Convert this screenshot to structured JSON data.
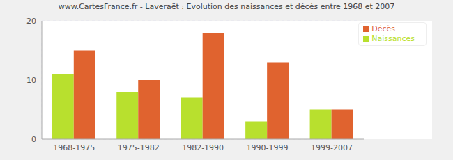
{
  "chart_data": {
    "type": "bar",
    "title": "www.CartesFrance.fr - Laveraët : Evolution des naissances et décès entre 1968 et 2007",
    "categories": [
      "1968-1975",
      "1975-1982",
      "1982-1990",
      "1990-1999",
      "1999-2007"
    ],
    "series": [
      {
        "name": "Naissances",
        "color": "#b8e02e",
        "values": [
          11,
          8,
          7,
          3,
          5
        ]
      },
      {
        "name": "Décès",
        "color": "#e0632f",
        "values": [
          15,
          10,
          18,
          13,
          5
        ]
      }
    ],
    "ylim": [
      0,
      20
    ],
    "yticks": [
      0,
      10,
      20
    ],
    "grid": true,
    "legend": "upper right"
  }
}
